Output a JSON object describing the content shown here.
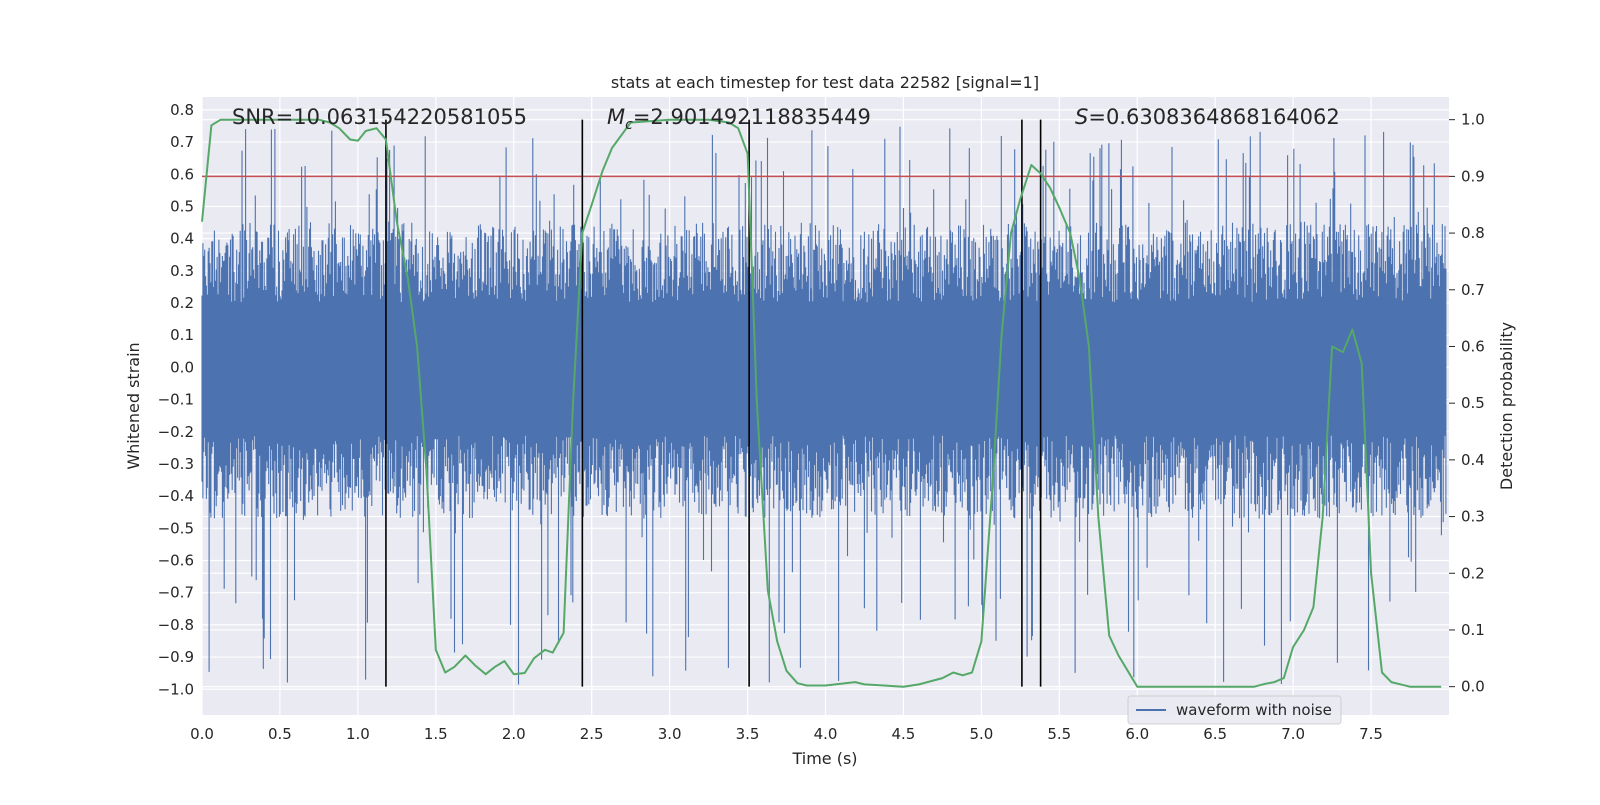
{
  "chart_data": {
    "type": "line",
    "title": "stats at each timestep for test data 22582 [signal=1]",
    "xlabel": "Time (s)",
    "ylabel_left": "Whitened strain",
    "ylabel_right": "Detection probability",
    "xlim": [
      0.0,
      8.0
    ],
    "ylim_left": [
      -1.08,
      0.84
    ],
    "ylim_right": [
      -0.05,
      1.04
    ],
    "x_ticks": [
      "0.0",
      "0.5",
      "1.0",
      "1.5",
      "2.0",
      "2.5",
      "3.0",
      "3.5",
      "4.0",
      "4.5",
      "5.0",
      "5.5",
      "6.0",
      "6.5",
      "7.0",
      "7.5"
    ],
    "y_left_ticks": [
      "0.8",
      "0.7",
      "0.6",
      "0.5",
      "0.4",
      "0.3",
      "0.2",
      "0.1",
      "0.0",
      "−0.1",
      "−0.2",
      "−0.3",
      "−0.4",
      "−0.5",
      "−0.6",
      "−0.7",
      "−0.8",
      "−0.9",
      "−1.0"
    ],
    "y_right_ticks": [
      "1.0",
      "0.9",
      "0.8",
      "0.7",
      "0.6",
      "0.5",
      "0.4",
      "0.3",
      "0.2",
      "0.1",
      "0.0"
    ],
    "annotations": {
      "snr": "SNR=10.063154220581055",
      "mc_symbol": "M",
      "mc_subscript": "c",
      "mc_value": "=2.901492118835449",
      "s_symbol": "S",
      "s_value": "=0.6308364868164062"
    },
    "legend": {
      "label": "waveform with noise",
      "placement": "lower-right"
    },
    "threshold": {
      "value": 0.9,
      "axis": "right",
      "color": "#c44e52"
    },
    "vertical_lines_x": [
      1.18,
      2.44,
      3.51,
      5.26,
      5.38
    ],
    "series": [
      {
        "name": "waveform with noise",
        "axis": "left",
        "color": "#4c72b0",
        "envelope": {
          "typical_min": -0.47,
          "typical_max": 0.45,
          "peak_min": -0.99,
          "peak_max": 0.76
        }
      },
      {
        "axis": "right",
        "color": "#55a868",
        "x": [
          0.0,
          0.06,
          0.12,
          0.25,
          0.5,
          0.75,
          0.82,
          0.88,
          0.95,
          1.0,
          1.05,
          1.12,
          1.18,
          1.25,
          1.32,
          1.38,
          1.44,
          1.5,
          1.56,
          1.62,
          1.69,
          1.75,
          1.82,
          1.88,
          1.94,
          2.0,
          2.07,
          2.13,
          2.2,
          2.25,
          2.32,
          2.38,
          2.44,
          2.5,
          2.57,
          2.63,
          2.75,
          3.0,
          3.25,
          3.38,
          3.44,
          3.5,
          3.56,
          3.63,
          3.69,
          3.75,
          3.82,
          3.88,
          4.0,
          4.19,
          4.25,
          4.5,
          4.6,
          4.75,
          4.82,
          4.88,
          4.94,
          5.0,
          5.07,
          5.13,
          5.19,
          5.25,
          5.32,
          5.38,
          5.44,
          5.5,
          5.57,
          5.63,
          5.69,
          5.75,
          5.82,
          5.88,
          6.0,
          6.13,
          6.5,
          6.75,
          6.82,
          6.88,
          6.94,
          7.0,
          7.07,
          7.13,
          7.19,
          7.25,
          7.32,
          7.38,
          7.44,
          7.5,
          7.57,
          7.63,
          7.75,
          7.95
        ],
        "values": [
          0.82,
          0.99,
          1.0,
          1.0,
          1.0,
          1.0,
          0.995,
          0.985,
          0.965,
          0.963,
          0.98,
          0.985,
          0.965,
          0.82,
          0.72,
          0.6,
          0.38,
          0.065,
          0.025,
          0.035,
          0.055,
          0.038,
          0.022,
          0.035,
          0.045,
          0.022,
          0.024,
          0.05,
          0.065,
          0.06,
          0.095,
          0.5,
          0.8,
          0.85,
          0.91,
          0.95,
          0.995,
          1.0,
          1.0,
          0.995,
          0.985,
          0.94,
          0.5,
          0.17,
          0.08,
          0.028,
          0.006,
          0.002,
          0.002,
          0.008,
          0.004,
          0.0,
          0.004,
          0.015,
          0.025,
          0.02,
          0.025,
          0.08,
          0.35,
          0.62,
          0.8,
          0.86,
          0.92,
          0.905,
          0.88,
          0.845,
          0.8,
          0.72,
          0.6,
          0.3,
          0.09,
          0.055,
          0.0,
          0.0,
          0.0,
          0.0,
          0.005,
          0.008,
          0.015,
          0.07,
          0.1,
          0.14,
          0.3,
          0.6,
          0.59,
          0.63,
          0.57,
          0.2,
          0.025,
          0.008,
          0.0,
          0.0
        ]
      }
    ]
  }
}
